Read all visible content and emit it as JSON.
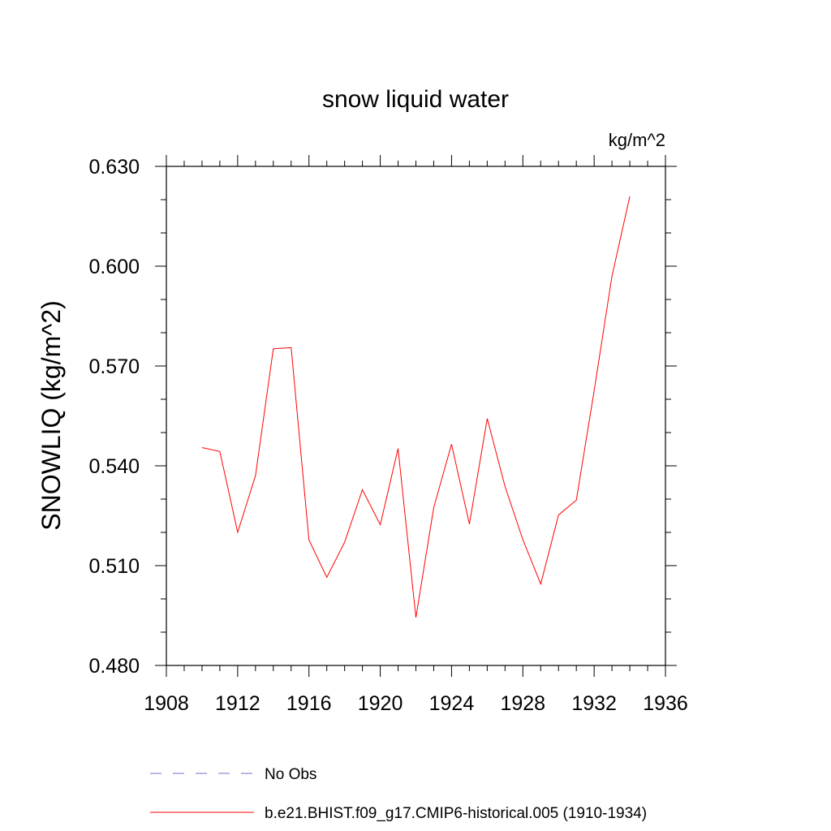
{
  "chart_data": {
    "type": "line",
    "title": "snow liquid water",
    "units": "kg/m^2",
    "ylabel": "SNOWLIQ  (kg/m^2)",
    "xlabel": "",
    "xlim": [
      1908,
      1936
    ],
    "ylim": [
      0.48,
      0.63
    ],
    "x_ticks": [
      "1908",
      "1912",
      "1916",
      "1920",
      "1924",
      "1928",
      "1932",
      "1936"
    ],
    "y_ticks": [
      "0.480",
      "0.510",
      "0.540",
      "0.570",
      "0.600",
      "0.630"
    ],
    "grid": false,
    "legend_position": "bottom",
    "series": [
      {
        "name": "b.e21.BHIST.f09_g17.CMIP6-historical.005 (1910-1934)",
        "color": "#ff0000",
        "style": "solid",
        "x": [
          1910,
          1911,
          1912,
          1913,
          1914,
          1915,
          1916,
          1917,
          1918,
          1919,
          1920,
          1921,
          1922,
          1923,
          1924,
          1925,
          1926,
          1927,
          1928,
          1929,
          1930,
          1931,
          1932,
          1933,
          1934
        ],
        "values": [
          0.5455,
          0.5443,
          0.52,
          0.537,
          0.5752,
          0.5755,
          0.5177,
          0.5065,
          0.517,
          0.5328,
          0.5223,
          0.5452,
          0.4944,
          0.5275,
          0.5465,
          0.5225,
          0.5542,
          0.5338,
          0.5178,
          0.5045,
          0.5252,
          0.5297,
          0.5625,
          0.597,
          0.621
        ]
      }
    ],
    "legend": [
      {
        "label": "No Obs",
        "color": "#7b68c8",
        "style": "dashed"
      },
      {
        "label": "b.e21.BHIST.f09_g17.CMIP6-historical.005 (1910-1934)",
        "color": "#ff0000",
        "style": "solid"
      }
    ]
  }
}
